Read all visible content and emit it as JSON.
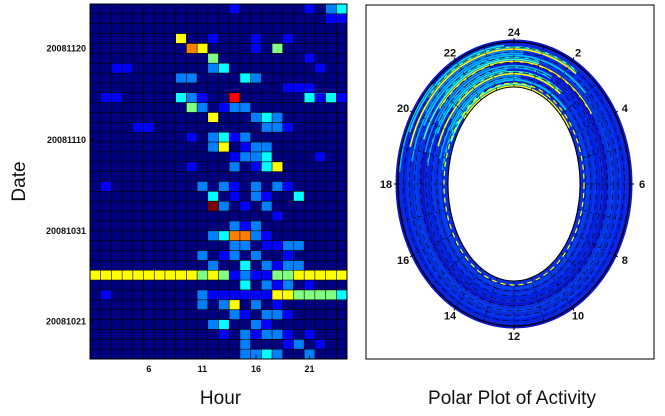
{
  "chart_data": [
    {
      "type": "heatmap",
      "title": "",
      "xlabel": "Hour",
      "ylabel": "Date",
      "xticks": [
        "6",
        "11",
        "16",
        "21"
      ],
      "yticks": [
        "20081120",
        "20081110",
        "20081031",
        "20081021"
      ],
      "n_cols": 24,
      "n_rows": 36,
      "colormap": [
        "#00007f",
        "#0000ff",
        "#0080ff",
        "#00ffff",
        "#80ff80",
        "#ffff00",
        "#ff8000",
        "#ff0000",
        "#7f0000"
      ],
      "cells": [
        [
          20,
          5,
          1
        ],
        [
          20,
          9,
          1
        ],
        [
          20,
          9,
          2
        ],
        [
          20,
          9,
          3
        ],
        [
          21,
          9,
          4
        ],
        [
          21,
          9,
          2
        ],
        [
          22,
          9,
          1
        ],
        [
          22,
          9,
          3
        ],
        [
          23,
          9,
          2
        ],
        [
          21,
          9,
          1
        ],
        [
          23,
          9,
          1
        ],
        [
          18,
          8,
          1
        ],
        [
          19,
          8,
          1
        ],
        [
          20,
          8,
          1
        ],
        [
          8,
          9,
          2
        ],
        [
          8,
          9,
          3
        ],
        [
          9,
          9,
          2
        ],
        [
          10,
          9,
          1
        ],
        [
          1,
          9,
          1
        ],
        [
          2,
          9,
          1
        ],
        [
          17,
          11,
          2
        ],
        [
          16,
          12,
          2
        ],
        [
          16,
          24,
          1
        ],
        [
          14,
          28,
          2
        ],
        [
          33,
          1,
          1
        ],
        [
          11,
          3,
          1
        ],
        [
          15,
          3,
          1
        ],
        [
          18,
          3,
          1
        ],
        [
          15,
          4,
          1
        ],
        [
          11,
          6,
          2
        ],
        [
          12,
          6,
          3
        ],
        [
          14,
          7,
          3
        ],
        [
          15,
          7,
          2
        ],
        [
          10,
          10,
          2
        ],
        [
          12,
          10,
          1
        ],
        [
          13,
          10,
          2
        ],
        [
          14,
          10,
          2
        ],
        [
          15,
          11,
          2
        ],
        [
          16,
          11,
          3
        ],
        [
          17,
          12,
          2
        ],
        [
          18,
          12,
          1
        ],
        [
          9,
          13,
          1
        ],
        [
          11,
          13,
          2
        ],
        [
          12,
          13,
          3
        ],
        [
          13,
          13,
          1
        ],
        [
          14,
          13,
          2
        ],
        [
          11,
          14,
          2
        ],
        [
          12,
          14,
          1
        ],
        [
          14,
          14,
          1
        ],
        [
          15,
          14,
          2
        ],
        [
          16,
          14,
          2
        ],
        [
          13,
          15,
          1
        ],
        [
          14,
          15,
          2
        ],
        [
          15,
          15,
          2
        ],
        [
          16,
          15,
          3
        ],
        [
          13,
          16,
          2
        ],
        [
          15,
          16,
          1
        ],
        [
          16,
          16,
          3
        ],
        [
          17,
          16,
          2
        ],
        [
          10,
          18,
          2
        ],
        [
          12,
          18,
          2
        ],
        [
          13,
          18,
          1
        ],
        [
          15,
          18,
          2
        ],
        [
          17,
          18,
          2
        ],
        [
          18,
          18,
          1
        ],
        [
          11,
          19,
          3
        ],
        [
          13,
          19,
          1
        ],
        [
          15,
          19,
          2
        ],
        [
          16,
          19,
          1
        ],
        [
          19,
          19,
          3
        ],
        [
          11,
          20,
          1
        ],
        [
          12,
          20,
          2
        ],
        [
          14,
          20,
          1
        ],
        [
          16,
          20,
          2
        ],
        [
          13,
          22,
          2
        ],
        [
          14,
          22,
          1
        ],
        [
          15,
          22,
          2
        ],
        [
          11,
          23,
          2
        ],
        [
          12,
          23,
          3
        ],
        [
          14,
          23,
          4
        ],
        [
          15,
          23,
          2
        ],
        [
          16,
          23,
          1
        ],
        [
          13,
          24,
          2
        ],
        [
          14,
          24,
          2
        ],
        [
          17,
          24,
          1
        ],
        [
          18,
          24,
          2
        ],
        [
          19,
          24,
          2
        ],
        [
          10,
          25,
          2
        ],
        [
          12,
          25,
          1
        ],
        [
          13,
          25,
          2
        ],
        [
          15,
          25,
          2
        ],
        [
          18,
          25,
          1
        ],
        [
          11,
          26,
          2
        ],
        [
          14,
          26,
          3
        ],
        [
          16,
          26,
          2
        ],
        [
          17,
          26,
          1
        ],
        [
          18,
          26,
          2
        ],
        [
          19,
          26,
          2
        ],
        [
          10,
          27,
          2
        ],
        [
          12,
          27,
          2
        ],
        [
          13,
          27,
          3
        ],
        [
          17,
          27,
          2
        ],
        [
          19,
          27,
          1
        ],
        [
          14,
          28,
          3
        ],
        [
          16,
          28,
          2
        ],
        [
          17,
          28,
          1
        ],
        [
          18,
          28,
          2
        ],
        [
          11,
          29,
          2
        ],
        [
          12,
          29,
          2
        ],
        [
          13,
          29,
          1
        ],
        [
          16,
          29,
          2
        ],
        [
          17,
          29,
          3
        ],
        [
          10,
          30,
          2
        ],
        [
          12,
          30,
          2
        ],
        [
          15,
          30,
          2
        ],
        [
          17,
          30,
          1
        ],
        [
          13,
          31,
          2
        ],
        [
          14,
          31,
          1
        ],
        [
          16,
          31,
          2
        ],
        [
          17,
          31,
          2
        ],
        [
          18,
          31,
          1
        ],
        [
          11,
          32,
          2
        ],
        [
          12,
          32,
          3
        ],
        [
          15,
          32,
          2
        ],
        [
          16,
          32,
          1
        ],
        [
          12,
          33,
          1
        ],
        [
          14,
          33,
          2
        ],
        [
          15,
          33,
          2
        ],
        [
          16,
          33,
          2
        ],
        [
          17,
          33,
          2
        ],
        [
          8,
          7,
          2
        ],
        [
          9,
          7,
          2
        ],
        [
          9,
          16,
          1
        ],
        [
          21,
          15,
          1
        ],
        [
          1,
          18,
          1
        ],
        [
          17,
          21,
          1
        ],
        [
          1,
          27,
          1
        ],
        [
          1,
          29,
          1
        ],
        [
          20,
          28,
          1
        ],
        [
          20,
          33,
          1
        ],
        [
          18,
          33,
          1
        ],
        [
          21,
          6,
          1
        ],
        [
          5,
          12,
          1
        ],
        [
          4,
          12,
          1
        ],
        [
          2,
          6,
          1
        ],
        [
          3,
          6,
          1
        ],
        [
          13,
          0,
          1
        ],
        [
          20,
          0,
          1
        ],
        [
          22,
          0,
          2
        ],
        [
          23,
          0,
          3
        ],
        [
          23,
          1,
          1
        ],
        [
          22,
          1,
          1
        ],
        [
          14,
          34,
          2
        ],
        [
          15,
          35,
          2
        ],
        [
          16,
          35,
          3
        ],
        [
          17,
          35,
          2
        ],
        [
          18,
          34,
          1
        ],
        [
          14,
          35,
          2
        ],
        [
          19,
          34,
          2
        ],
        [
          20,
          35,
          2
        ],
        [
          21,
          34,
          1
        ]
      ],
      "hot_cells": [
        [
          13,
          9,
          7
        ],
        [
          11,
          11,
          5
        ],
        [
          12,
          14,
          5
        ],
        [
          17,
          16,
          5
        ],
        [
          11,
          20,
          8
        ],
        [
          13,
          23,
          6
        ],
        [
          14,
          23,
          6
        ],
        [
          13,
          30,
          5
        ],
        [
          15,
          33,
          1
        ],
        [
          9,
          4,
          6
        ],
        [
          10,
          4,
          5
        ],
        [
          9,
          10,
          4
        ],
        [
          11,
          5,
          4
        ],
        [
          8,
          3,
          5
        ],
        [
          17,
          4,
          4
        ]
      ],
      "band_row": 27,
      "band_values": [
        5,
        5,
        5,
        5,
        5,
        5,
        5,
        5,
        5,
        5,
        4,
        5,
        4,
        1,
        2,
        1,
        1,
        4,
        4,
        5,
        5,
        5,
        5,
        5
      ],
      "band_row2": 29,
      "band_values2": [
        0,
        0,
        0,
        0,
        0,
        0,
        0,
        0,
        0,
        0,
        2,
        1,
        1,
        1,
        1,
        1,
        1,
        5,
        5,
        4,
        4,
        4,
        4,
        3
      ]
    },
    {
      "type": "polar",
      "title": "Polar Plot of Activity",
      "angular_ticks": [
        "24",
        "2",
        "4",
        "6",
        "8",
        "10",
        "12",
        "14",
        "16",
        "18",
        "20",
        "22"
      ]
    }
  ]
}
